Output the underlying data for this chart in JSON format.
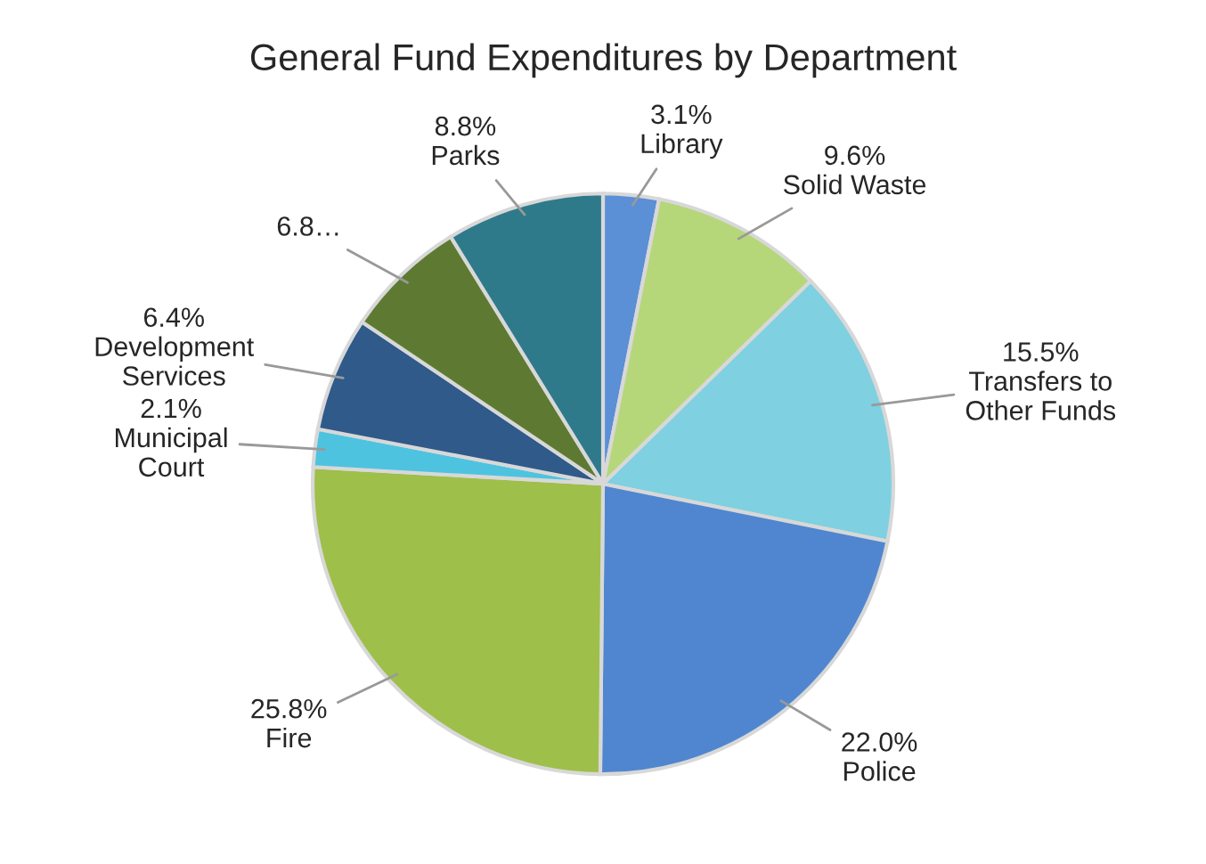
{
  "chart_data": {
    "type": "pie",
    "title": "General Fund Expenditures by Department",
    "categories": [
      "Library",
      "Solid Waste",
      "Transfers to Other Funds",
      "Police",
      "Fire",
      "Municipal Court",
      "Development Services",
      null,
      "Parks"
    ],
    "values": [
      3.1,
      9.6,
      15.5,
      22.0,
      25.8,
      2.1,
      6.4,
      6.8,
      8.8
    ],
    "value_labels": [
      "3.1%",
      "9.6%",
      "15.5%",
      "22.0%",
      "25.8%",
      "2.1%",
      "6.4%",
      "6.8…",
      "8.8%"
    ],
    "colors": [
      "#5b8fd6",
      "#b5d77a",
      "#7fd0e0",
      "#4f86cf",
      "#9ebf4a",
      "#4ec3df",
      "#2f5a8a",
      "#5e7a32",
      "#2e7a8a"
    ],
    "legend": false
  }
}
